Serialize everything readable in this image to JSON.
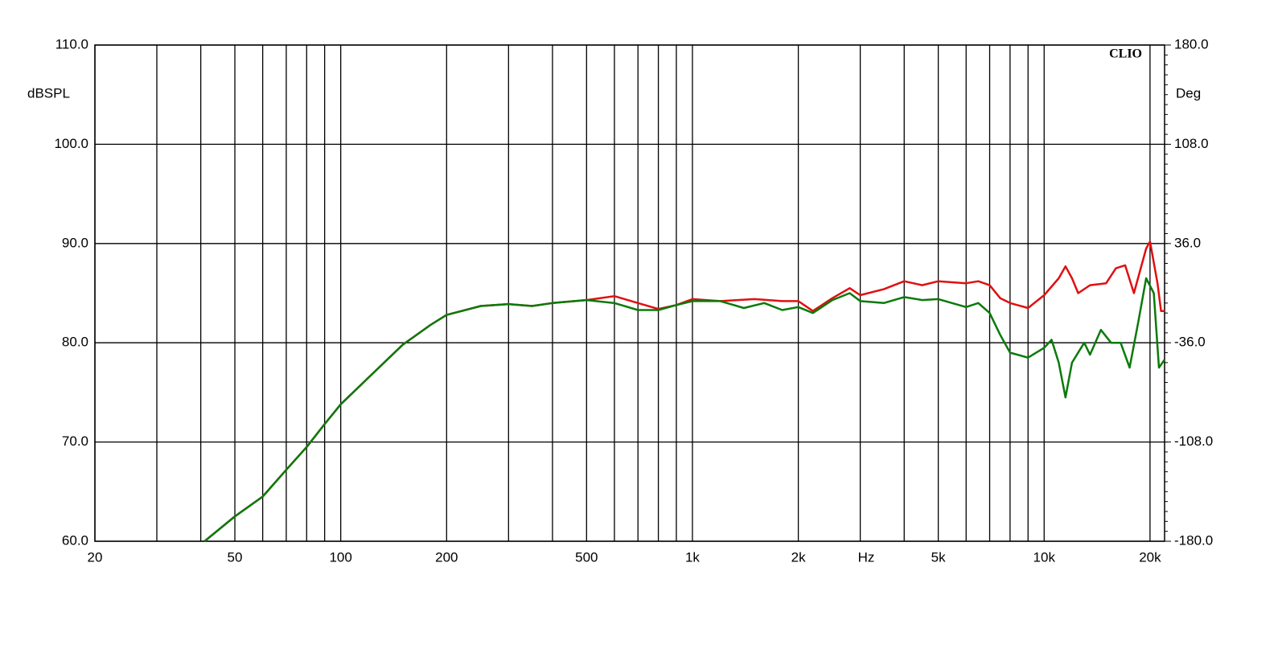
{
  "chart_data": {
    "type": "line",
    "annotation": "CLIO",
    "ylabel": "dBSPL",
    "y2label": "Deg",
    "xlabel": "Hz",
    "xscale": "log",
    "grid": true,
    "xlim": [
      20,
      22000
    ],
    "ylim": [
      60,
      110
    ],
    "y2lim": [
      -180,
      180
    ],
    "xticks": [
      {
        "value": 20,
        "label": "20"
      },
      50,
      100,
      200,
      500,
      {
        "value": 1000,
        "label": "1k"
      },
      {
        "value": 2000,
        "label": "2k"
      },
      {
        "value": 5000,
        "label": "5k"
      },
      {
        "value": 10000,
        "label": "10k"
      },
      {
        "value": 20000,
        "label": "20k"
      }
    ],
    "xminor": [
      30,
      40,
      60,
      70,
      80,
      90,
      300,
      400,
      600,
      700,
      800,
      900,
      3000,
      4000,
      6000,
      7000,
      8000,
      9000
    ],
    "yticks": [
      {
        "value": 60,
        "label": "60.0"
      },
      {
        "value": 70,
        "label": "70.0"
      },
      {
        "value": 80,
        "label": "80.0"
      },
      {
        "value": 90,
        "label": "90.0"
      },
      {
        "value": 100,
        "label": "100.0"
      },
      {
        "value": 110,
        "label": "110.0"
      }
    ],
    "y2ticks": [
      {
        "value": -180,
        "label": "-180.0"
      },
      {
        "value": -108,
        "label": "-108.0"
      },
      {
        "value": -36,
        "label": "-36.0"
      },
      {
        "value": 36,
        "label": "36.0"
      },
      {
        "value": 108,
        "label": "108.0"
      },
      {
        "value": 180,
        "label": "180.0"
      }
    ],
    "series": [
      {
        "color": "#e01010",
        "x": [
          41,
          50,
          60,
          70,
          80,
          90,
          100,
          120,
          150,
          180,
          200,
          250,
          300,
          350,
          400,
          500,
          600,
          700,
          800,
          900,
          1000,
          1200,
          1500,
          1800,
          2000,
          2200,
          2500,
          2800,
          3000,
          3500,
          4000,
          4500,
          5000,
          6000,
          6500,
          7000,
          7500,
          8000,
          9000,
          10000,
          11000,
          11500,
          12000,
          12500,
          13500,
          15000,
          16000,
          17000,
          18000,
          19500,
          20000,
          21000,
          21500,
          22000
        ],
        "values": [
          60,
          62.5,
          64.5,
          67.2,
          69.5,
          71.8,
          73.8,
          76.5,
          79.8,
          81.8,
          82.8,
          83.7,
          83.9,
          83.7,
          84.0,
          84.3,
          84.7,
          84.0,
          83.4,
          83.8,
          84.4,
          84.2,
          84.4,
          84.2,
          84.2,
          83.2,
          84.5,
          85.5,
          84.8,
          85.4,
          86.2,
          85.8,
          86.2,
          86.0,
          86.2,
          85.8,
          84.5,
          84.0,
          83.5,
          84.8,
          86.5,
          87.7,
          86.5,
          85.0,
          85.8,
          86.0,
          87.5,
          87.8,
          85.0,
          89.5,
          90.2,
          86.0,
          83.2,
          83.2
        ]
      },
      {
        "color": "#0a7a0a",
        "x": [
          41,
          50,
          60,
          70,
          80,
          90,
          100,
          120,
          150,
          180,
          200,
          250,
          300,
          350,
          400,
          500,
          600,
          700,
          800,
          900,
          1000,
          1200,
          1400,
          1600,
          1800,
          2000,
          2200,
          2500,
          2800,
          3000,
          3500,
          4000,
          4500,
          5000,
          6000,
          6500,
          7000,
          7500,
          8000,
          9000,
          10000,
          10500,
          11000,
          11500,
          12000,
          13000,
          13500,
          14500,
          15500,
          16500,
          17500,
          18500,
          19500,
          20500,
          21200,
          22000
        ],
        "values": [
          60,
          62.5,
          64.5,
          67.2,
          69.5,
          71.8,
          73.8,
          76.5,
          79.8,
          81.8,
          82.8,
          83.7,
          83.9,
          83.7,
          84.0,
          84.3,
          84.0,
          83.3,
          83.3,
          83.8,
          84.2,
          84.2,
          83.5,
          84.0,
          83.3,
          83.6,
          83.0,
          84.3,
          85.0,
          84.2,
          84.0,
          84.6,
          84.3,
          84.4,
          83.6,
          84.0,
          83.0,
          80.8,
          79.0,
          78.5,
          79.5,
          80.3,
          78.0,
          74.5,
          78.0,
          80.0,
          78.8,
          81.3,
          80.0,
          80.0,
          77.5,
          82.0,
          86.5,
          85.0,
          77.5,
          78.3
        ]
      }
    ]
  }
}
